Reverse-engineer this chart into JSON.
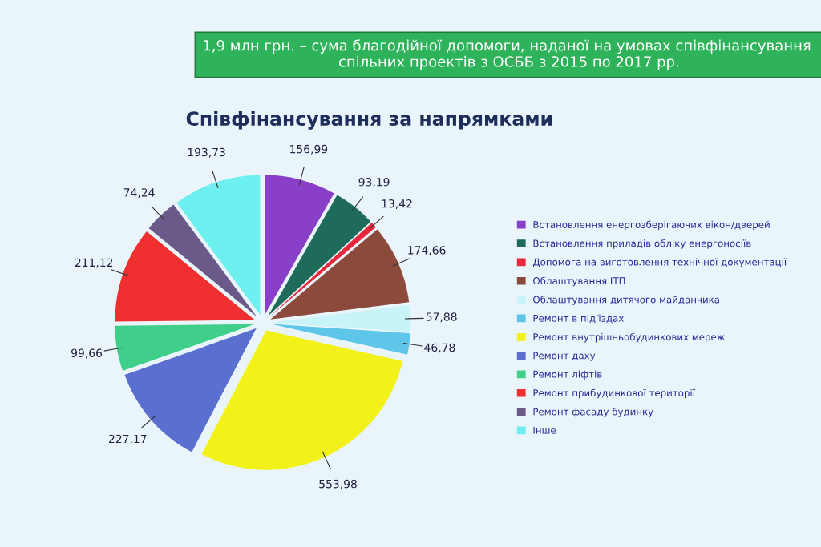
{
  "chart_data": {
    "type": "pie",
    "title": "1,9 млн грн. – сума благодійної допомоги, наданої на умовах співфінансування  спільних проектів з ОСББ з 2015 по 2017 рр.",
    "subtitle": "Співфінансування за напрямками",
    "categories": [
      "Встановлення енергозберігаючих вікон/дверей",
      "Встановлення приладів обліку енергоносіїв",
      "Допомога на виготовлення технічної документації",
      "Облаштування ІТП",
      "Облаштування дитячого майданчика",
      "Ремонт в під'їздах",
      "Ремонт внутрішньобудинкових мереж",
      "Ремонт даху",
      "Ремонт ліфтів",
      "Ремонт прибудинкової території",
      "Ремонт фасаду будинку",
      "Інше"
    ],
    "values": [
      156.99,
      93.19,
      13.42,
      174.66,
      57.88,
      46.78,
      553.98,
      227.17,
      99.66,
      211.12,
      74.24,
      193.73
    ],
    "value_labels": [
      "156,99",
      "93,19",
      "13,42",
      "174,66",
      "57,88",
      "46,78",
      "553,98",
      "227,17",
      "99,66",
      "211,12",
      "74,24",
      "193,73"
    ],
    "colors": [
      "#8a3fc9",
      "#1f6b5a",
      "#e8283c",
      "#8b4a3c",
      "#c8f4f8",
      "#5ec6e8",
      "#f2f21a",
      "#5a6fd0",
      "#3fcf8a",
      "#f03030",
      "#6a5a8a",
      "#6ff0f0"
    ],
    "legend": "right"
  }
}
